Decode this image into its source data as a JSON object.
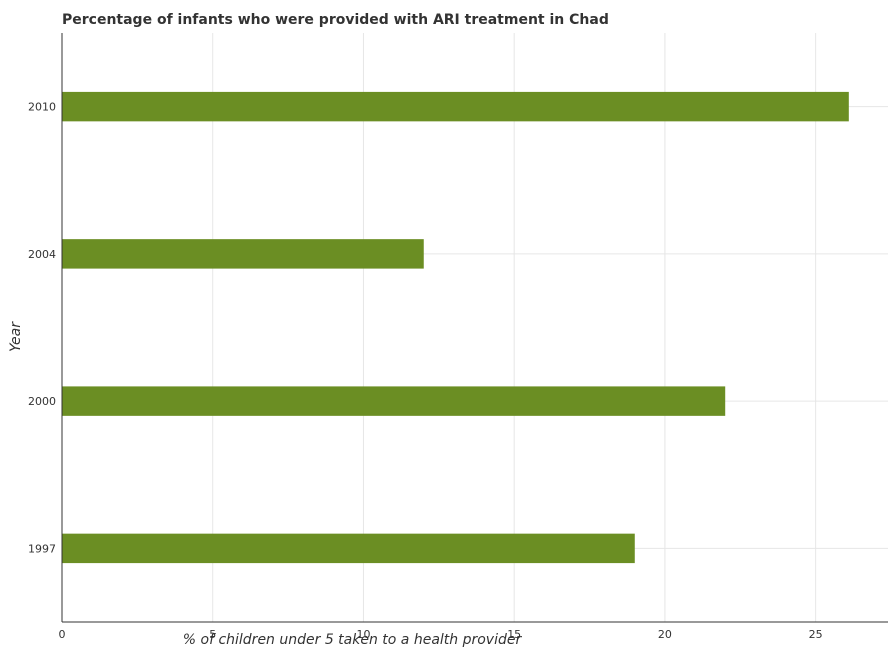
{
  "chart_data": {
    "type": "bar",
    "orientation": "horizontal",
    "title": "Percentage of infants who were provided with ARI treatment in Chad",
    "xlabel": "% of children under 5 taken to a health provider",
    "ylabel": "Year",
    "categories": [
      "1997",
      "2000",
      "2004",
      "2010"
    ],
    "values": [
      19,
      22,
      12,
      26.1
    ],
    "xlim": [
      0,
      27.4
    ],
    "xticks": [
      0,
      5,
      10,
      15,
      20,
      25
    ],
    "grid": true,
    "bar_color": "#6b8e23"
  }
}
